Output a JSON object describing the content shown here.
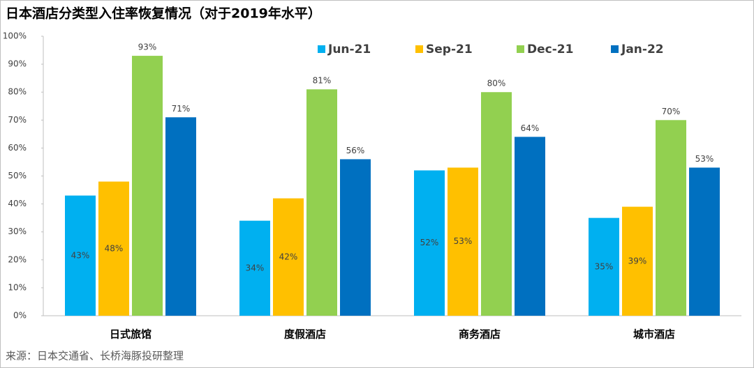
{
  "chart_data": {
    "type": "bar",
    "title": "日本酒店分类型入住率恢复情况（对于2019年水平）",
    "source": "来源：日本交通省、长桥海豚投研整理",
    "categories": [
      "日式旅馆",
      "度假酒店",
      "商务酒店",
      "城市酒店"
    ],
    "series": [
      {
        "name": "Jun-21",
        "color": "#00b0f0",
        "values": [
          43,
          34,
          52,
          35
        ],
        "value_labels": [
          "43%",
          "34%",
          "52%",
          "35%"
        ]
      },
      {
        "name": "Sep-21",
        "color": "#ffc000",
        "values": [
          48,
          42,
          53,
          39
        ],
        "value_labels": [
          "48%",
          "42%",
          "53%",
          "39%"
        ]
      },
      {
        "name": "Dec-21",
        "color": "#92d050",
        "values": [
          93,
          81,
          80,
          70
        ],
        "value_labels": [
          "93%",
          "81%",
          "80%",
          "70%"
        ]
      },
      {
        "name": "Jan-22",
        "color": "#0070c0",
        "values": [
          71,
          56,
          64,
          53
        ],
        "value_labels": [
          "71%",
          "56%",
          "64%",
          "53%"
        ]
      }
    ],
    "ylim": [
      0,
      100
    ],
    "yticks": [
      {
        "value": 0,
        "label": "0%"
      },
      {
        "value": 10,
        "label": "10%"
      },
      {
        "value": 20,
        "label": "20%"
      },
      {
        "value": 30,
        "label": "30%"
      },
      {
        "value": 40,
        "label": "40%"
      },
      {
        "value": 50,
        "label": "50%"
      },
      {
        "value": 60,
        "label": "60%"
      },
      {
        "value": 70,
        "label": "70%"
      },
      {
        "value": 80,
        "label": "80%"
      },
      {
        "value": 90,
        "label": "90%"
      },
      {
        "value": 100,
        "label": "100%"
      }
    ],
    "grid": false
  }
}
